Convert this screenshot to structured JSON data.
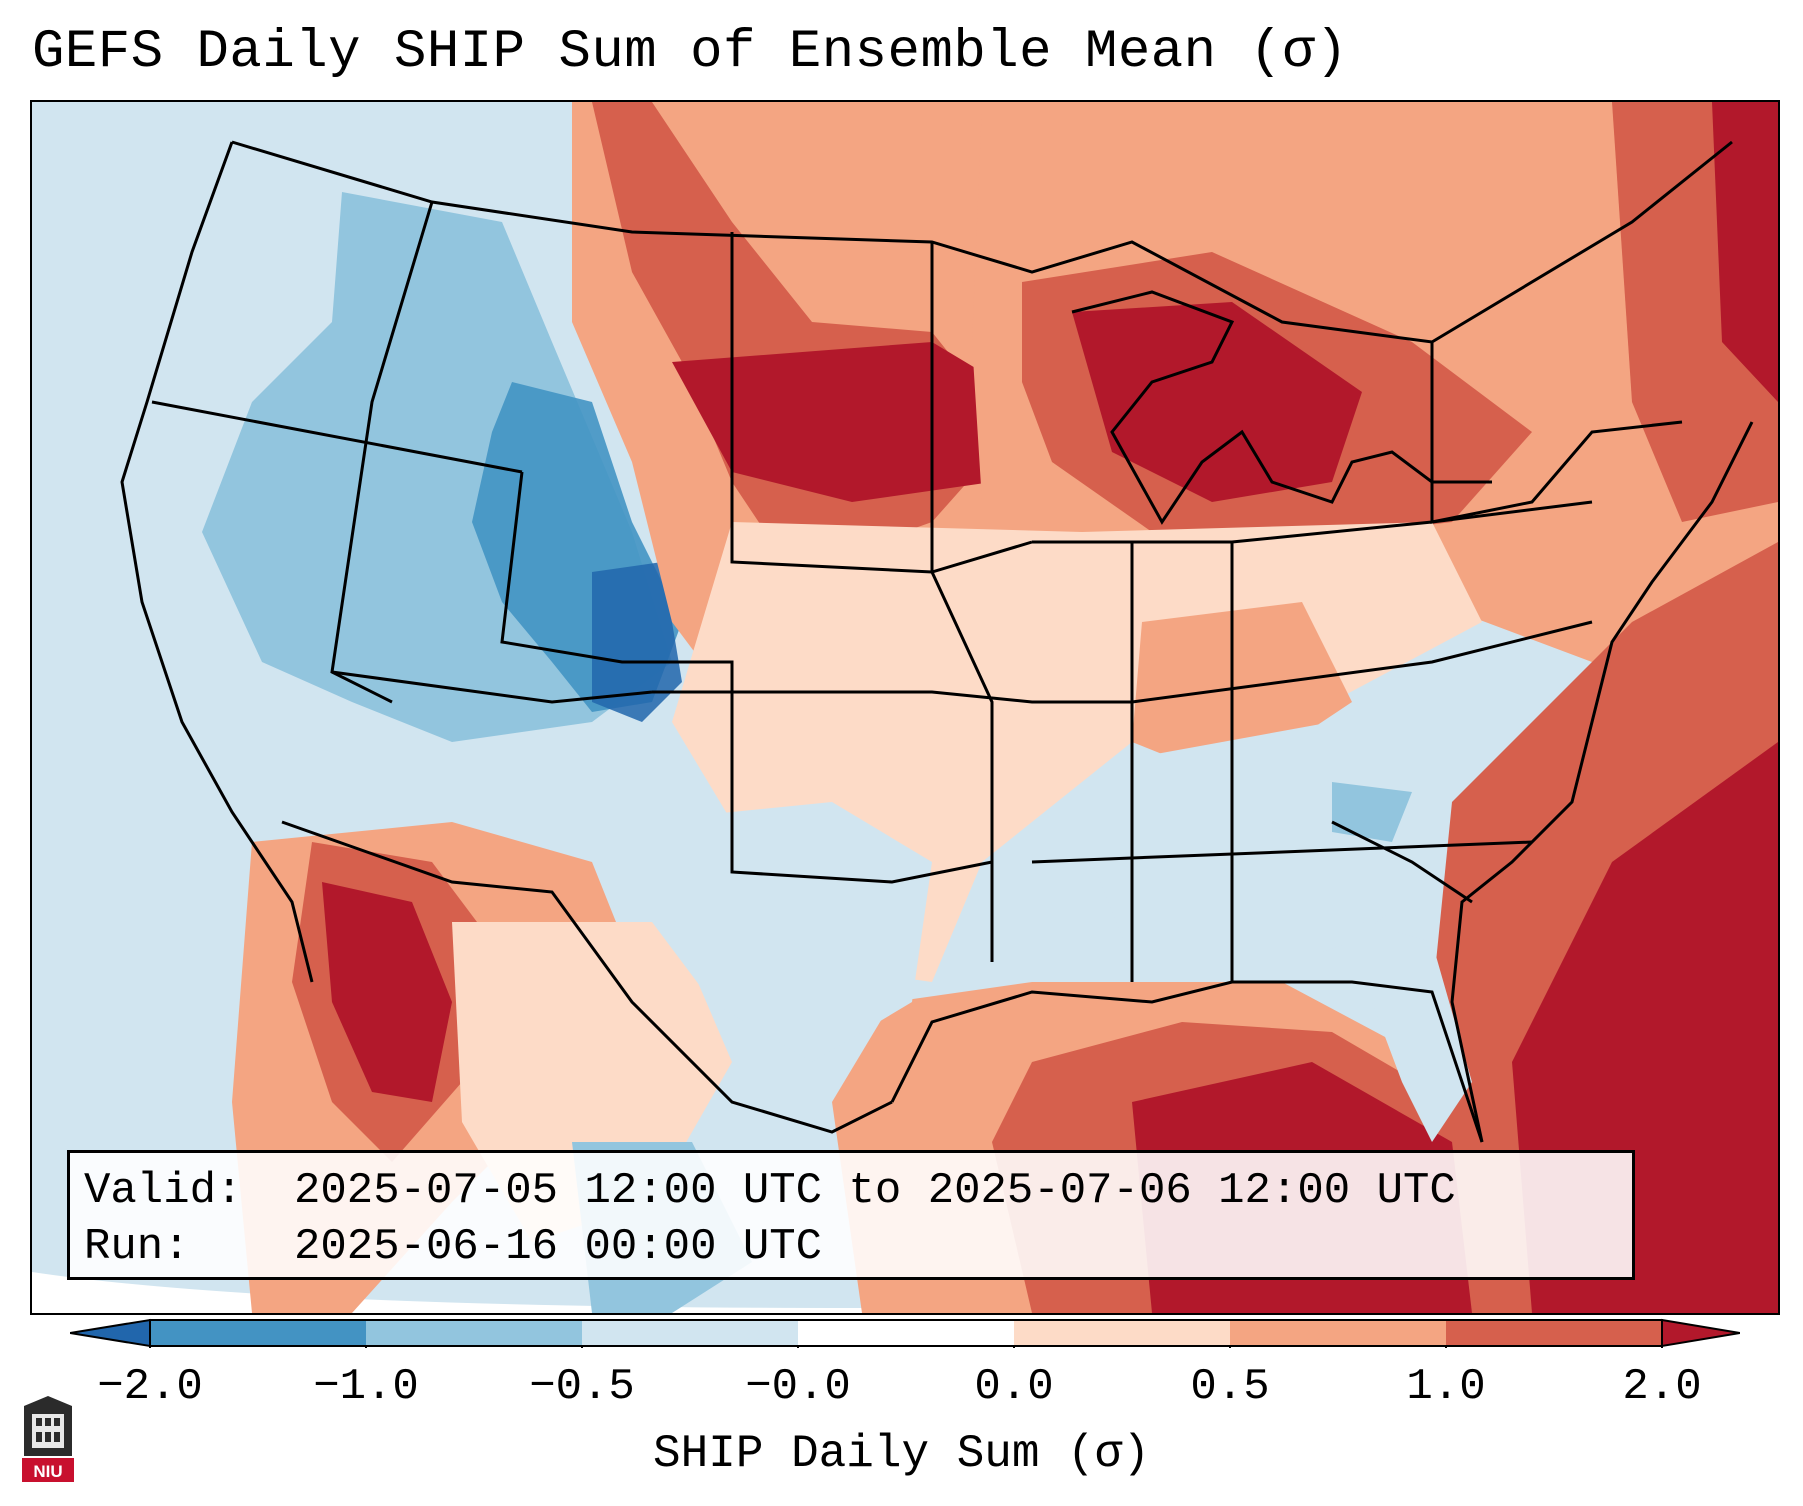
{
  "title": "GEFS Daily SHIP Sum of Ensemble Mean (σ)",
  "info": {
    "valid_label": "Valid:",
    "valid_value": "2025-07-05 12:00 UTC to 2025-07-06 12:00 UTC",
    "run_label": "Run:",
    "run_value": "2025-06-16 00:00 UTC"
  },
  "colorbar": {
    "label": "SHIP Daily Sum (σ)",
    "ticks": [
      "−2.0",
      "−1.0",
      "−0.5",
      "−0.0",
      "0.0",
      "0.5",
      "1.0",
      "2.0"
    ],
    "colors": [
      "#2166ac",
      "#4393c3",
      "#92c5de",
      "#d1e5f0",
      "#ffffff",
      "#fddbc7",
      "#f4a582",
      "#d6604d",
      "#b2182b"
    ]
  },
  "logo": {
    "text": "NIU"
  }
}
